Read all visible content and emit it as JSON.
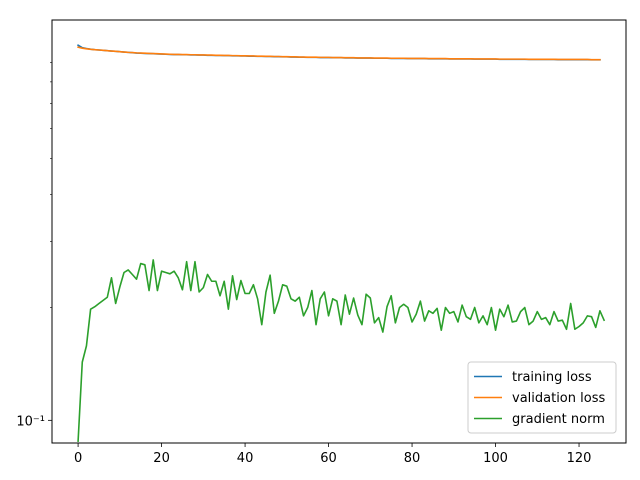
{
  "chart_data": {
    "type": "line",
    "title": "",
    "xlabel": "",
    "ylabel": "",
    "xlim": [
      -6.25,
      131.25
    ],
    "ylim": [
      0.087,
      1.17
    ],
    "yscale": "log",
    "grid": false,
    "legend_position": "lower-right",
    "x_ticks": [
      0,
      20,
      40,
      60,
      80,
      100,
      120
    ],
    "y_major_ticks": [
      0.1
    ],
    "y_major_tick_labels": [
      "10⁻¹"
    ],
    "y_minor_ticks": [
      0.2,
      0.3,
      0.4,
      0.5,
      0.6,
      0.7,
      0.8,
      0.9
    ],
    "series": [
      {
        "name": "training loss",
        "color": "#1f77b4",
        "x_start": 0,
        "values": [
          1.002,
          0.987,
          0.982,
          0.978,
          0.975,
          0.973,
          0.971,
          0.969,
          0.967,
          0.965,
          0.963,
          0.961,
          0.959,
          0.957,
          0.955,
          0.954,
          0.953,
          0.952,
          0.951,
          0.95,
          0.949,
          0.948,
          0.947,
          0.946,
          0.946,
          0.945,
          0.945,
          0.944,
          0.944,
          0.943,
          0.943,
          0.942,
          0.942,
          0.941,
          0.941,
          0.94,
          0.94,
          0.939,
          0.939,
          0.938,
          0.938,
          0.937,
          0.937,
          0.936,
          0.936,
          0.935,
          0.935,
          0.934,
          0.934,
          0.933,
          0.933,
          0.932,
          0.932,
          0.931,
          0.931,
          0.93,
          0.93,
          0.93,
          0.929,
          0.929,
          0.929,
          0.928,
          0.928,
          0.928,
          0.927,
          0.927,
          0.927,
          0.926,
          0.926,
          0.926,
          0.926,
          0.925,
          0.925,
          0.925,
          0.925,
          0.924,
          0.924,
          0.924,
          0.924,
          0.923,
          0.923,
          0.923,
          0.923,
          0.923,
          0.922,
          0.922,
          0.922,
          0.922,
          0.922,
          0.921,
          0.921,
          0.921,
          0.921,
          0.921,
          0.921,
          0.92,
          0.92,
          0.92,
          0.92,
          0.92,
          0.92,
          0.919,
          0.919,
          0.919,
          0.919,
          0.919,
          0.919,
          0.919,
          0.918,
          0.918,
          0.918,
          0.918,
          0.918,
          0.918,
          0.918,
          0.917,
          0.917,
          0.917,
          0.917,
          0.917,
          0.917,
          0.917,
          0.917,
          0.916,
          0.916,
          0.916
        ]
      },
      {
        "name": "validation loss",
        "color": "#ff7f0e",
        "x_start": 0,
        "values": [
          0.99,
          0.984,
          0.98,
          0.977,
          0.975,
          0.973,
          0.971,
          0.969,
          0.967,
          0.965,
          0.963,
          0.961,
          0.959,
          0.958,
          0.956,
          0.955,
          0.954,
          0.953,
          0.952,
          0.951,
          0.95,
          0.949,
          0.948,
          0.947,
          0.947,
          0.946,
          0.946,
          0.945,
          0.945,
          0.944,
          0.944,
          0.943,
          0.943,
          0.942,
          0.942,
          0.941,
          0.941,
          0.94,
          0.94,
          0.939,
          0.939,
          0.938,
          0.938,
          0.937,
          0.937,
          0.936,
          0.936,
          0.935,
          0.935,
          0.934,
          0.934,
          0.933,
          0.933,
          0.932,
          0.932,
          0.931,
          0.931,
          0.931,
          0.93,
          0.93,
          0.93,
          0.929,
          0.929,
          0.929,
          0.928,
          0.928,
          0.928,
          0.927,
          0.927,
          0.927,
          0.927,
          0.926,
          0.926,
          0.926,
          0.926,
          0.925,
          0.925,
          0.925,
          0.925,
          0.924,
          0.924,
          0.924,
          0.924,
          0.924,
          0.923,
          0.923,
          0.923,
          0.923,
          0.923,
          0.922,
          0.922,
          0.922,
          0.922,
          0.922,
          0.922,
          0.921,
          0.921,
          0.921,
          0.921,
          0.921,
          0.921,
          0.92,
          0.92,
          0.92,
          0.92,
          0.92,
          0.92,
          0.92,
          0.919,
          0.919,
          0.919,
          0.919,
          0.919,
          0.919,
          0.919,
          0.918,
          0.918,
          0.918,
          0.918,
          0.918,
          0.918,
          0.918,
          0.918,
          0.917,
          0.917,
          0.917
        ]
      },
      {
        "name": "gradient norm",
        "color": "#2ca02c",
        "x_start": 0,
        "values": [
          0.088,
          0.143,
          0.158,
          0.198,
          0.201,
          0.205,
          0.209,
          0.213,
          0.24,
          0.205,
          0.227,
          0.248,
          0.252,
          0.245,
          0.238,
          0.262,
          0.26,
          0.222,
          0.268,
          0.222,
          0.25,
          0.248,
          0.246,
          0.25,
          0.24,
          0.223,
          0.265,
          0.222,
          0.265,
          0.22,
          0.226,
          0.245,
          0.235,
          0.235,
          0.215,
          0.235,
          0.198,
          0.243,
          0.21,
          0.236,
          0.218,
          0.218,
          0.23,
          0.211,
          0.18,
          0.22,
          0.244,
          0.193,
          0.208,
          0.23,
          0.228,
          0.211,
          0.208,
          0.213,
          0.19,
          0.2,
          0.222,
          0.18,
          0.211,
          0.22,
          0.19,
          0.211,
          0.208,
          0.18,
          0.216,
          0.192,
          0.212,
          0.191,
          0.18,
          0.217,
          0.212,
          0.182,
          0.188,
          0.172,
          0.201,
          0.215,
          0.182,
          0.2,
          0.204,
          0.2,
          0.183,
          0.192,
          0.208,
          0.184,
          0.196,
          0.193,
          0.199,
          0.174,
          0.2,
          0.193,
          0.195,
          0.183,
          0.203,
          0.189,
          0.186,
          0.2,
          0.182,
          0.19,
          0.18,
          0.2,
          0.174,
          0.198,
          0.189,
          0.203,
          0.183,
          0.184,
          0.195,
          0.2,
          0.18,
          0.184,
          0.195,
          0.186,
          0.188,
          0.18,
          0.195,
          0.184,
          0.185,
          0.175,
          0.205,
          0.175,
          0.178,
          0.182,
          0.19,
          0.189,
          0.177,
          0.196,
          0.185
        ]
      }
    ]
  }
}
